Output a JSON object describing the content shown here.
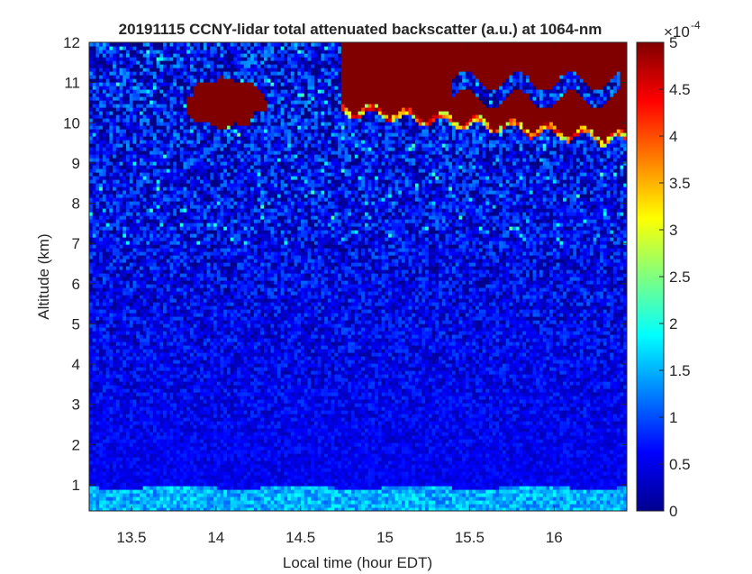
{
  "chart_data": {
    "type": "heatmap",
    "title": "20191115 CCNY-lidar total attenuated backscatter (a.u.) at 1064-nm",
    "xlabel": "Local time (hour EDT)",
    "ylabel": "Altitude (km)",
    "xlim": [
      13.25,
      16.43
    ],
    "ylim": [
      0.35,
      12
    ],
    "x_ticks": [
      "13.5",
      "14",
      "14.5",
      "15",
      "15.5",
      "16"
    ],
    "y_ticks": [
      "1",
      "2",
      "3",
      "4",
      "5",
      "6",
      "7",
      "8",
      "9",
      "10",
      "11",
      "12"
    ],
    "colorbar": {
      "colormap": "jet",
      "range": [
        0,
        5
      ],
      "ticks": [
        "0",
        "0.5",
        "1",
        "1.5",
        "2",
        "2.5",
        "3",
        "3.5",
        "4",
        "4.5",
        "5"
      ],
      "exponent_base": "×10",
      "exponent": "-4"
    },
    "features": [
      {
        "name": "near-surface aerosol layer",
        "altitude_km": [
          0.35,
          0.95
        ],
        "time_h": [
          13.25,
          16.43
        ],
        "value_approx": 1.5
      },
      {
        "name": "cirrus cloud (left)",
        "altitude_km": [
          9.9,
          11.2
        ],
        "time_h": [
          13.83,
          14.3
        ],
        "value_approx": 5
      },
      {
        "name": "cirrus cloud (right)",
        "altitude_km": [
          9.6,
          12
        ],
        "time_h": [
          14.65,
          16.43
        ],
        "value_approx": 5
      },
      {
        "name": "free troposphere background",
        "altitude_km": [
          1,
          9.5
        ],
        "time_h": [
          13.25,
          16.43
        ],
        "value_approx": 0.6
      }
    ]
  }
}
